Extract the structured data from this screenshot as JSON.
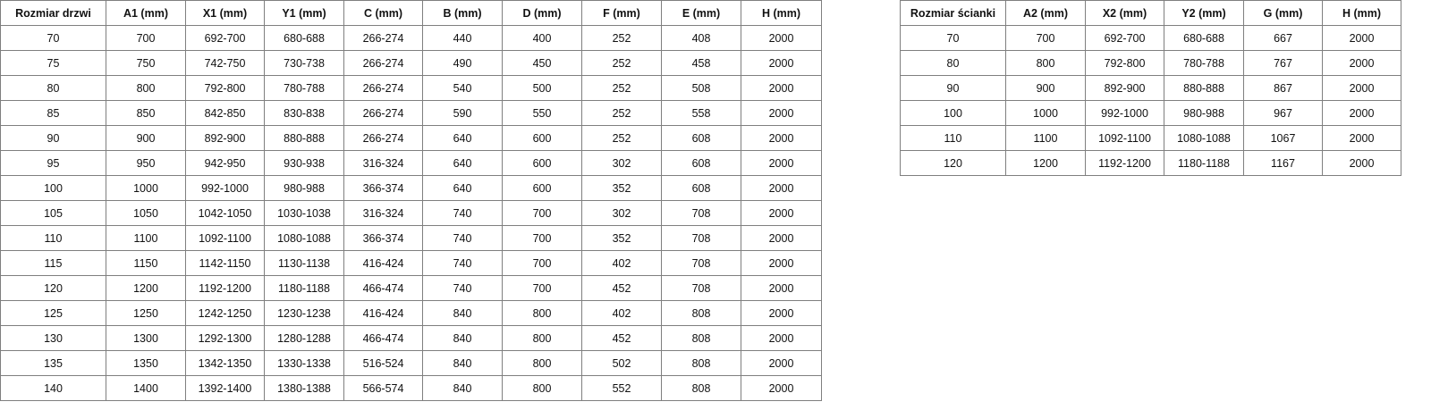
{
  "door_table": {
    "headers": [
      "Rozmiar drzwi",
      "A1 (mm)",
      "X1 (mm)",
      "Y1 (mm)",
      "C (mm)",
      "B (mm)",
      "D (mm)",
      "F (mm)",
      "E (mm)",
      "H (mm)"
    ],
    "rows": [
      [
        "70",
        "700",
        "692-700",
        "680-688",
        "266-274",
        "440",
        "400",
        "252",
        "408",
        "2000"
      ],
      [
        "75",
        "750",
        "742-750",
        "730-738",
        "266-274",
        "490",
        "450",
        "252",
        "458",
        "2000"
      ],
      [
        "80",
        "800",
        "792-800",
        "780-788",
        "266-274",
        "540",
        "500",
        "252",
        "508",
        "2000"
      ],
      [
        "85",
        "850",
        "842-850",
        "830-838",
        "266-274",
        "590",
        "550",
        "252",
        "558",
        "2000"
      ],
      [
        "90",
        "900",
        "892-900",
        "880-888",
        "266-274",
        "640",
        "600",
        "252",
        "608",
        "2000"
      ],
      [
        "95",
        "950",
        "942-950",
        "930-938",
        "316-324",
        "640",
        "600",
        "302",
        "608",
        "2000"
      ],
      [
        "100",
        "1000",
        "992-1000",
        "980-988",
        "366-374",
        "640",
        "600",
        "352",
        "608",
        "2000"
      ],
      [
        "105",
        "1050",
        "1042-1050",
        "1030-1038",
        "316-324",
        "740",
        "700",
        "302",
        "708",
        "2000"
      ],
      [
        "110",
        "1100",
        "1092-1100",
        "1080-1088",
        "366-374",
        "740",
        "700",
        "352",
        "708",
        "2000"
      ],
      [
        "115",
        "1150",
        "1142-1150",
        "1130-1138",
        "416-424",
        "740",
        "700",
        "402",
        "708",
        "2000"
      ],
      [
        "120",
        "1200",
        "1192-1200",
        "1180-1188",
        "466-474",
        "740",
        "700",
        "452",
        "708",
        "2000"
      ],
      [
        "125",
        "1250",
        "1242-1250",
        "1230-1238",
        "416-424",
        "840",
        "800",
        "402",
        "808",
        "2000"
      ],
      [
        "130",
        "1300",
        "1292-1300",
        "1280-1288",
        "466-474",
        "840",
        "800",
        "452",
        "808",
        "2000"
      ],
      [
        "135",
        "1350",
        "1342-1350",
        "1330-1338",
        "516-524",
        "840",
        "800",
        "502",
        "808",
        "2000"
      ],
      [
        "140",
        "1400",
        "1392-1400",
        "1380-1388",
        "566-574",
        "840",
        "800",
        "552",
        "808",
        "2000"
      ]
    ]
  },
  "wall_table": {
    "headers": [
      "Rozmiar ścianki",
      "A2 (mm)",
      "X2 (mm)",
      "Y2 (mm)",
      "G (mm)",
      "H (mm)"
    ],
    "rows": [
      [
        "70",
        "700",
        "692-700",
        "680-688",
        "667",
        "2000"
      ],
      [
        "80",
        "800",
        "792-800",
        "780-788",
        "767",
        "2000"
      ],
      [
        "90",
        "900",
        "892-900",
        "880-888",
        "867",
        "2000"
      ],
      [
        "100",
        "1000",
        "992-1000",
        "980-988",
        "967",
        "2000"
      ],
      [
        "110",
        "1100",
        "1092-1100",
        "1080-1088",
        "1067",
        "2000"
      ],
      [
        "120",
        "1200",
        "1192-1200",
        "1180-1188",
        "1167",
        "2000"
      ]
    ]
  }
}
